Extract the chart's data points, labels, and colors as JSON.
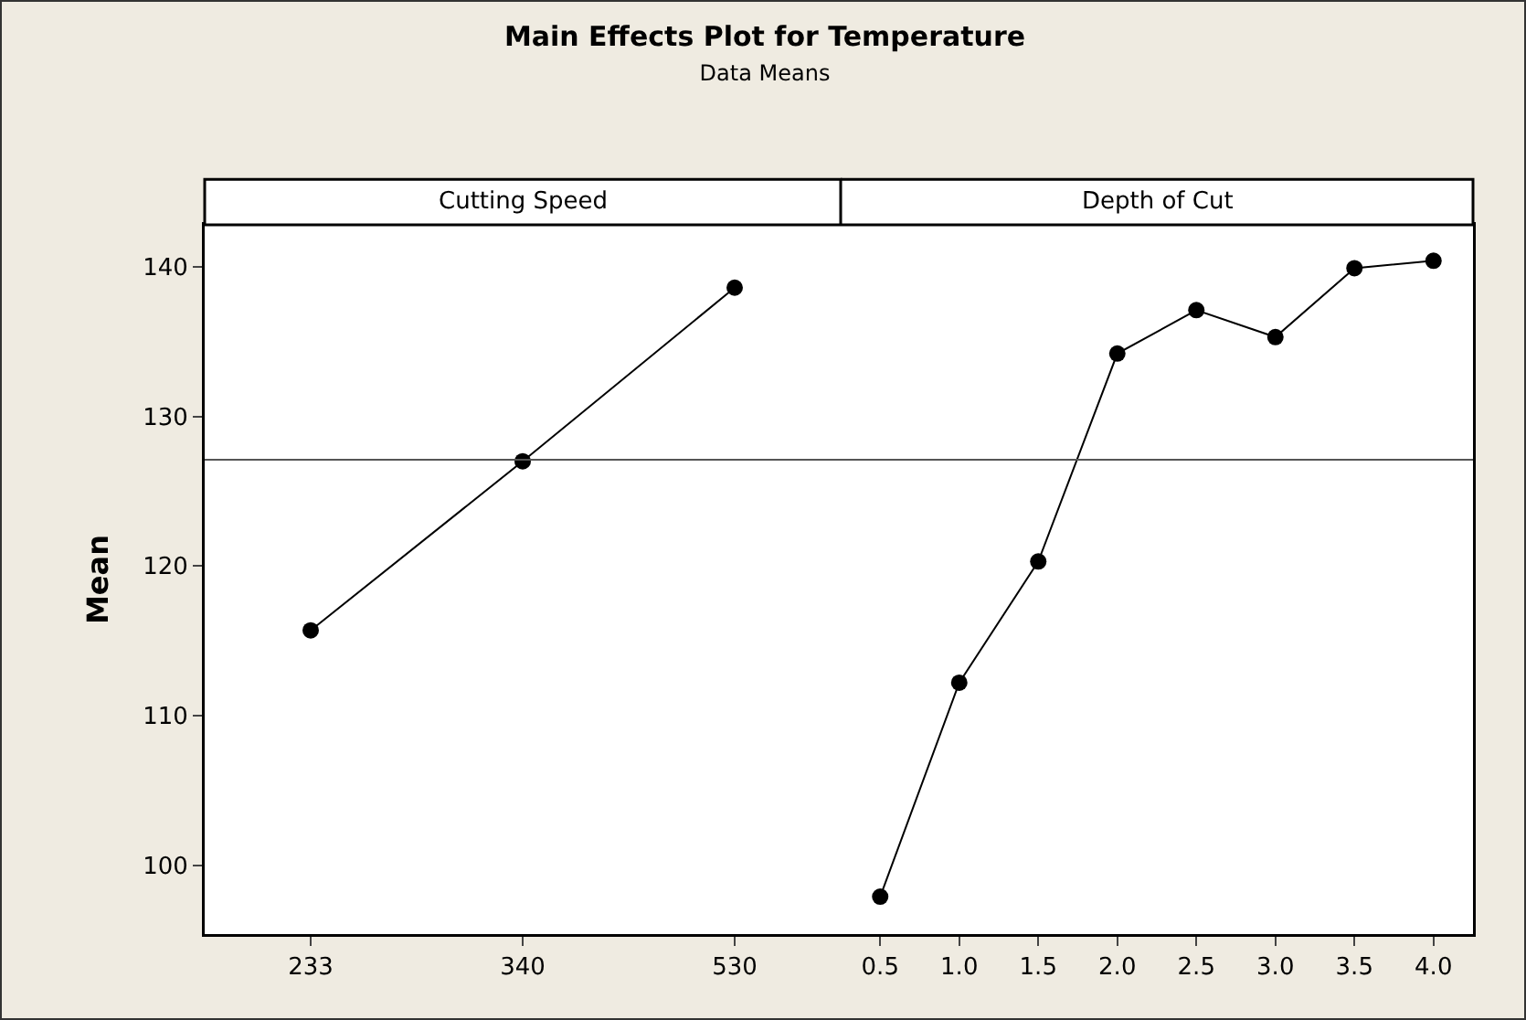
{
  "chart_data": [
    {
      "type": "line",
      "title": "Main Effects Plot for Temperature",
      "subtitle": "Data Means",
      "annotations": [
        "Cutting Speed"
      ],
      "ylabel": "Mean",
      "categories": [
        "233",
        "340",
        "530"
      ],
      "values": [
        115.7,
        127.0,
        138.6
      ],
      "color": "#000000",
      "marker": "circle",
      "line_style": "solid",
      "ylim": [
        95.4,
        142.8
      ],
      "yticks": [
        100,
        110,
        120,
        130,
        140
      ],
      "ref_lines": [
        {
          "axis": "y",
          "value": 127.1,
          "color": "#555555"
        }
      ]
    },
    {
      "type": "line",
      "annotations": [
        "Depth of Cut"
      ],
      "categories": [
        "0.5",
        "1.0",
        "1.5",
        "2.0",
        "2.5",
        "3.0",
        "3.5",
        "4.0"
      ],
      "values": [
        97.9,
        112.2,
        120.3,
        134.2,
        137.1,
        135.3,
        139.9,
        140.4
      ],
      "color": "#000000",
      "marker": "circle",
      "line_style": "solid",
      "ylim": [
        95.4,
        142.8
      ],
      "yticks": [
        100,
        110,
        120,
        130,
        140
      ],
      "ref_lines": [
        {
          "axis": "y",
          "value": 127.1,
          "color": "#555555"
        }
      ],
      "tick_labels": "x"
    }
  ]
}
